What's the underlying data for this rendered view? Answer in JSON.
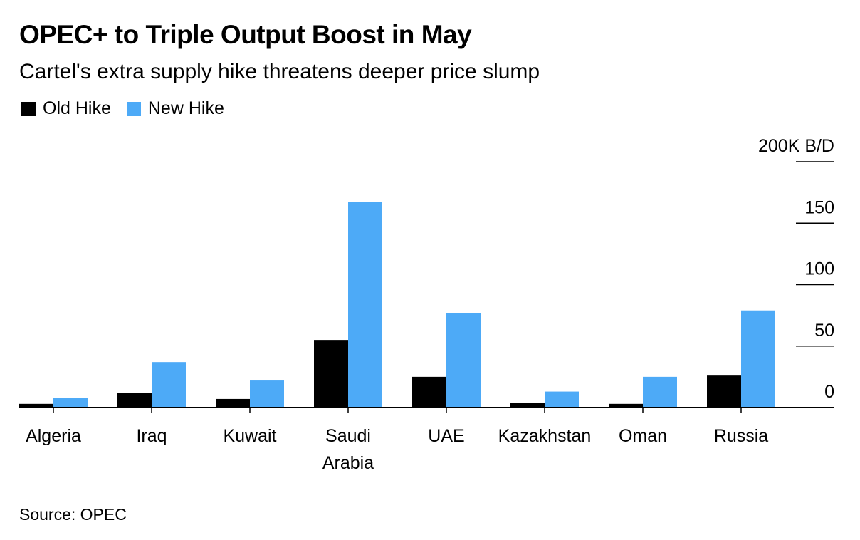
{
  "title": "OPEC+ to Triple Output Boost in May",
  "subtitle": "Cartel's extra supply hike threatens deeper price slump",
  "source": "Source: OPEC",
  "colors": {
    "old": "#000000",
    "new": "#4daaf7"
  },
  "chart_data": {
    "type": "bar",
    "categories": [
      "Algeria",
      "Iraq",
      "Kuwait",
      "Saudi Arabia",
      "UAE",
      "Kazakhstan",
      "Oman",
      "Russia"
    ],
    "category_lines": [
      [
        "Algeria"
      ],
      [
        "Iraq"
      ],
      [
        "Kuwait"
      ],
      [
        "Saudi",
        "Arabia"
      ],
      [
        "UAE"
      ],
      [
        "Kazakhstan"
      ],
      [
        "Oman"
      ],
      [
        "Russia"
      ]
    ],
    "series": [
      {
        "name": "Old Hike",
        "values": [
          3,
          12,
          7,
          55,
          25,
          4,
          3,
          26
        ]
      },
      {
        "name": "New Hike",
        "values": [
          8,
          37,
          22,
          167,
          77,
          13,
          25,
          79
        ]
      }
    ],
    "ylim": [
      0,
      200
    ],
    "y_ticks": [
      {
        "value": 0,
        "label": "0"
      },
      {
        "value": 50,
        "label": "50"
      },
      {
        "value": 100,
        "label": "100"
      },
      {
        "value": 150,
        "label": "150"
      },
      {
        "value": 200,
        "label": "200K B/D"
      }
    ],
    "axis_position": "right",
    "legend_position": "top-left"
  }
}
